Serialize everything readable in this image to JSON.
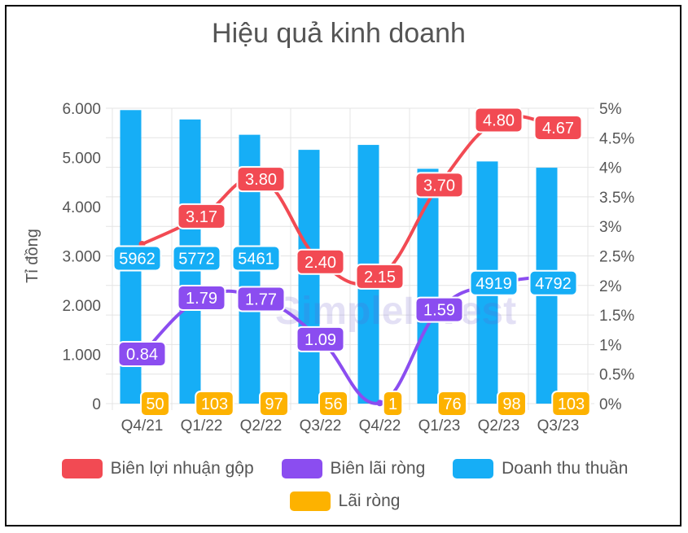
{
  "chart_data": {
    "type": "bar",
    "title": "Hiệu quả kinh doanh",
    "categories": [
      "Q4/21",
      "Q1/22",
      "Q2/22",
      "Q3/22",
      "Q4/22",
      "Q1/23",
      "Q2/23",
      "Q3/23"
    ],
    "ylabel": "Tỉ đồng",
    "y_ticks": [
      "0",
      "1.000",
      "2.000",
      "3.000",
      "4.000",
      "5.000",
      "6.000"
    ],
    "ylim": [
      0,
      6000
    ],
    "y2_ticks": [
      "0%",
      "0.5%",
      "1%",
      "1.5%",
      "2%",
      "2.5%",
      "3%",
      "3.5%",
      "4%",
      "4.5%",
      "5%"
    ],
    "y2lim": [
      0,
      5
    ],
    "grid": true,
    "legend_position": "bottom",
    "series": [
      {
        "name": "Biên lợi nhuận gộp",
        "type": "line",
        "axis": "right",
        "color": "#F24A53",
        "values": [
          2.7,
          3.17,
          3.8,
          2.4,
          2.15,
          3.7,
          4.8,
          4.67
        ],
        "labels": [
          "",
          "3.17",
          "3.80",
          "2.40",
          "2.15",
          "3.70",
          "4.80",
          "4.67"
        ]
      },
      {
        "name": "Biên lãi ròng",
        "type": "line",
        "axis": "right",
        "color": "#8B4DF0",
        "values": [
          0.84,
          1.79,
          1.77,
          1.09,
          0.01,
          1.59,
          2.03,
          2.16
        ],
        "labels": [
          "0.84",
          "1.79",
          "1.77",
          "1.09",
          "",
          "1.59",
          "",
          ""
        ]
      },
      {
        "name": "Doanh thu thuần",
        "type": "bar",
        "axis": "left",
        "color": "#16AEF6",
        "values": [
          5962,
          5772,
          5461,
          5155,
          5255,
          4770,
          4919,
          4792
        ],
        "labels": [
          "5962",
          "5772",
          "5461",
          "",
          "",
          "",
          "4919",
          "4792"
        ]
      },
      {
        "name": "Lãi ròng",
        "type": "bar",
        "axis": "left",
        "color": "#FDB200",
        "values": [
          50,
          103,
          97,
          56,
          1,
          76,
          98,
          103
        ],
        "labels": [
          "50",
          "103",
          "97",
          "56",
          "1",
          "76",
          "98",
          "103"
        ]
      }
    ]
  },
  "watermark": "SimpleInvest"
}
